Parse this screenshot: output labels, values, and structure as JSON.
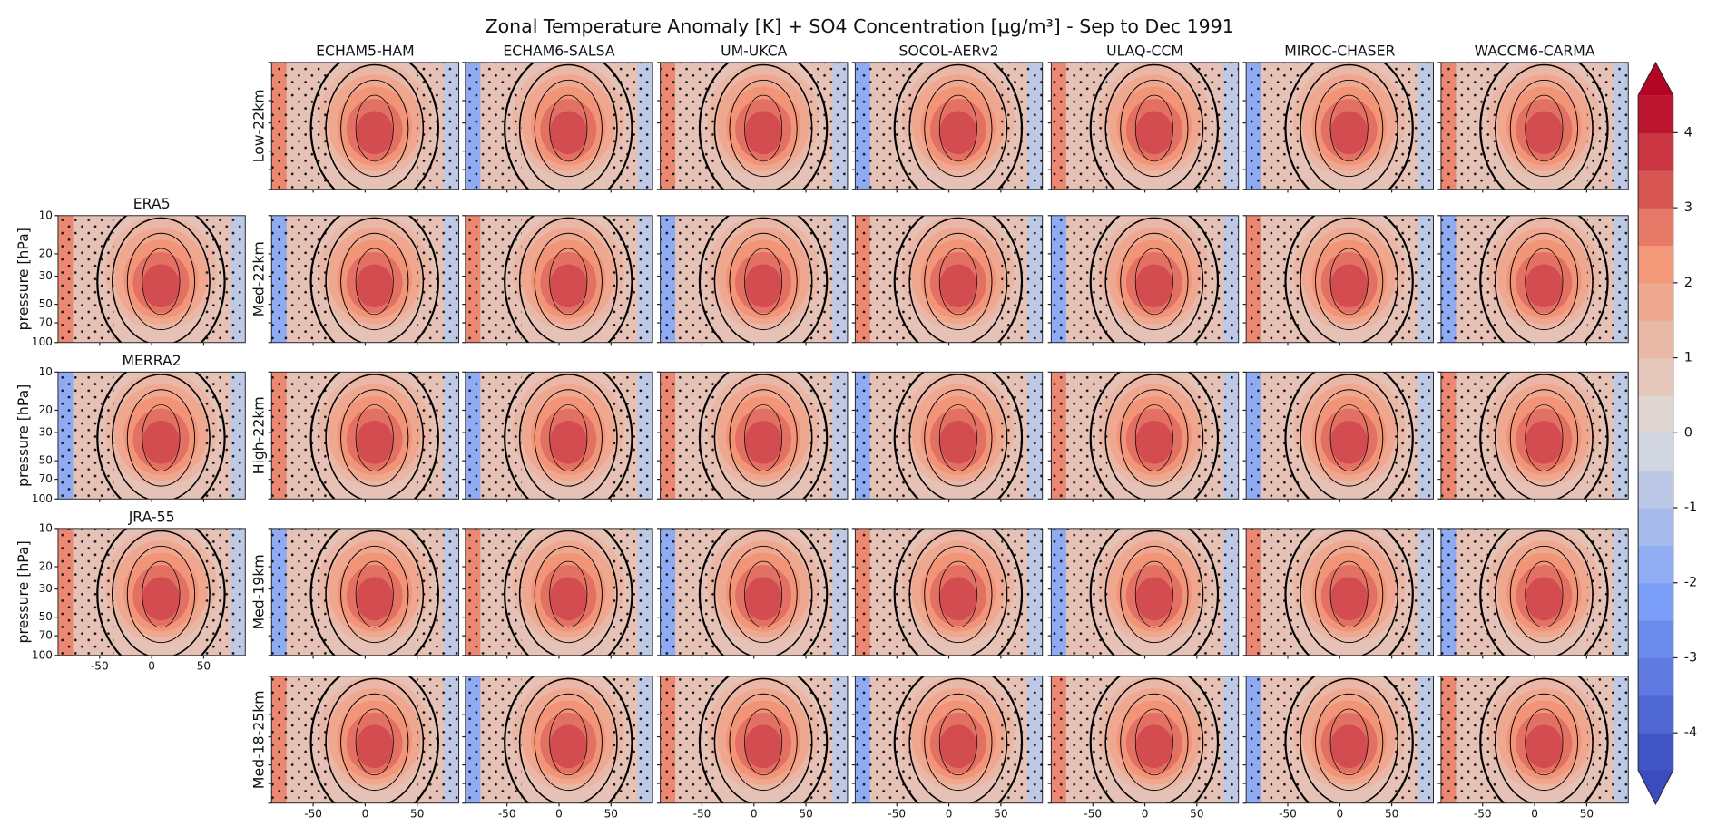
{
  "chart_data": {
    "type": "contour",
    "title": "Zonal Temperature Anomaly [K] + SO4 Concentration [μg/m³] - Sep to Dec 1991",
    "columns": [
      "ECHAM5-HAM",
      "ECHAM6-SALSA",
      "UM-UKCA",
      "SOCOL-AERv2",
      "ULAQ-CCM",
      "MIROC-CHASER",
      "WACCM6-CARMA"
    ],
    "rows": [
      "Low-22km",
      "Med-22km",
      "High-22km",
      "Med-19km",
      "Med-18-25km"
    ],
    "reanalyses": [
      "ERA5",
      "MERRA2",
      "JRA-55"
    ],
    "y_label": "pressure [hPa]",
    "xlim": [
      -90,
      90
    ],
    "xticks": [
      -50,
      0,
      50
    ],
    "ylim": [
      100,
      10
    ],
    "yticks": [
      10,
      20,
      30,
      50,
      70,
      100
    ],
    "log_y": true,
    "colorbar": {
      "lim": [
        -4.5,
        4.5
      ],
      "ticks": [
        -4,
        -3,
        -2,
        -1,
        0,
        1,
        2,
        3,
        4
      ],
      "extend": "both",
      "cmap": "coolwarm"
    }
  }
}
